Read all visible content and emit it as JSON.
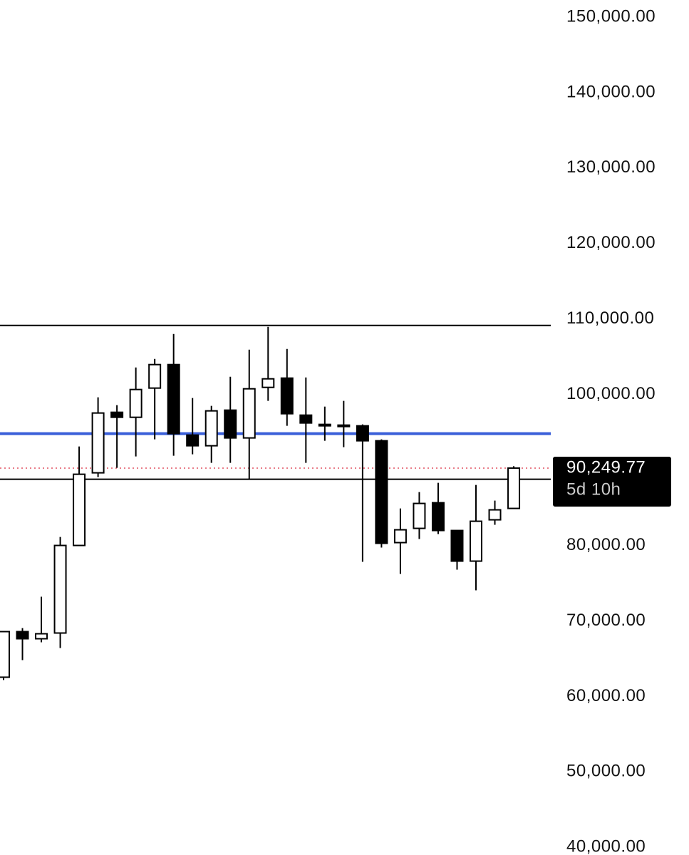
{
  "chart_data": {
    "type": "candlestick",
    "ylim": [
      38990,
      152264
    ],
    "yticks": [
      {
        "value": 150000,
        "label": "150,000.00"
      },
      {
        "value": 140000,
        "label": "140,000.00"
      },
      {
        "value": 130000,
        "label": "130,000.00"
      },
      {
        "value": 120000,
        "label": "120,000.00"
      },
      {
        "value": 110000,
        "label": "110,000.00"
      },
      {
        "value": 100000,
        "label": "100,000.00"
      },
      {
        "value": 80000,
        "label": "80,000.00"
      },
      {
        "value": 70000,
        "label": "70,000.00"
      },
      {
        "value": 60000,
        "label": "60,000.00"
      },
      {
        "value": 50000,
        "label": "50,000.00"
      },
      {
        "value": 40000,
        "label": "40,000.00"
      }
    ],
    "open": [
      62547,
      68585,
      67640,
      68397,
      80000,
      89622,
      97642,
      96981,
      100849,
      103962,
      94623,
      93208,
      97925,
      94245,
      100943,
      102170,
      97264,
      96038,
      95943,
      95849,
      93868,
      80377,
      82264,
      85660,
      81981,
      77925,
      83396,
      84906
    ],
    "high": [
      68600,
      69057,
      73207,
      81130,
      93113,
      99622,
      98585,
      103585,
      104717,
      108019,
      99528,
      98491,
      102358,
      105943,
      108962,
      106038,
      102264,
      98396,
      99151,
      96038,
      94057,
      84906,
      87075,
      88302,
      81981,
      88019,
      85943,
      90500
    ],
    "low": [
      62170,
      64810,
      67170,
      66415,
      80000,
      89057,
      90283,
      91792,
      94057,
      91887,
      92075,
      90943,
      90943,
      88774,
      99151,
      95849,
      90943,
      93868,
      93019,
      77830,
      79717,
      76226,
      80849,
      81509,
      76792,
      74057,
      82736,
      84906
    ],
    "close": [
      68585,
      67640,
      68300,
      80000,
      89434,
      97547,
      96981,
      100660,
      103962,
      94811,
      93208,
      97830,
      94245,
      100755,
      102075,
      97453,
      96226,
      95849,
      95849,
      93868,
      80283,
      82075,
      85566,
      81981,
      77925,
      83208,
      84717,
      90249.77
    ],
    "up_color": "#ffffff",
    "down_color": "#000000",
    "levels": [
      {
        "value": 109151,
        "color": "#000000"
      },
      {
        "value": 94811,
        "color": "#3a5fd9"
      },
      {
        "value": 88774,
        "color": "#000000"
      }
    ],
    "last_price": {
      "value": 90249.77,
      "label": "90,249.77",
      "color": "#e05060"
    },
    "countdown": "5d 10h"
  }
}
